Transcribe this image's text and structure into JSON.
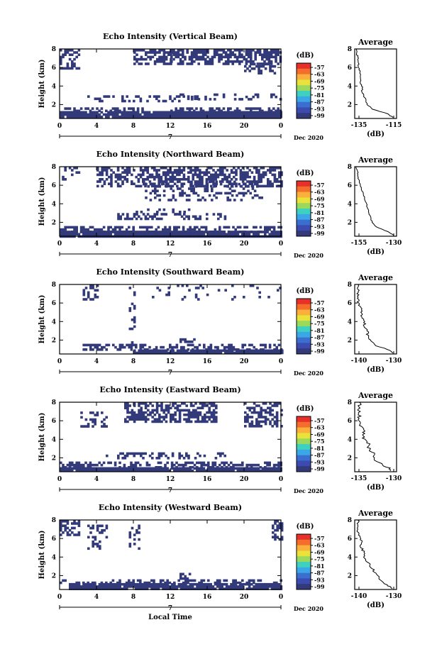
{
  "figure": {
    "xlabel": "Local Time",
    "date_label": "Dec 2020",
    "day_label": "7",
    "colorbar_unit": "(dB)",
    "colorbar_ticks": [
      "-57",
      "-63",
      "-69",
      "-75",
      "-81",
      "-87",
      "-93",
      "-99"
    ],
    "colorbar_colors": [
      "#e8302a",
      "#f46d2a",
      "#fbb03b",
      "#e8e23a",
      "#9bd95c",
      "#3fd1c0",
      "#3aa8e6",
      "#3a6fd0",
      "#3b4bb0",
      "#333a7a"
    ]
  },
  "chart_data": [
    {
      "type": "heatmap",
      "title": "Echo Intensity (Vertical Beam)",
      "xlabel": "",
      "ylabel": "Height (km)",
      "x_ticks": [
        "0",
        "4",
        "8",
        "12",
        "16",
        "20",
        "0"
      ],
      "y_ticks": [
        "2",
        "4",
        "6",
        "8"
      ],
      "xlim": [
        0,
        24
      ],
      "ylim": [
        0.5,
        8
      ],
      "colorbar_label": "(dB)",
      "colorbar_range": [
        -99,
        -57
      ],
      "dominant_color": "#333a7a",
      "profile": {
        "title": "Average",
        "xlabel": "(dB)",
        "x_ticks": [
          "-135",
          "-115"
        ],
        "y_ticks": [
          "2",
          "4",
          "6",
          "8"
        ],
        "xlim": [
          -137,
          -114
        ],
        "ylim": [
          0.5,
          8
        ],
        "height": [
          0.6,
          1.0,
          1.5,
          2.0,
          2.5,
          3.0,
          3.5,
          4.0,
          4.5,
          5.0,
          5.5,
          6.0,
          6.5,
          7.0,
          7.5,
          8.0
        ],
        "value": [
          -116,
          -119,
          -127,
          -130,
          -131,
          -132,
          -133,
          -133,
          -134,
          -134,
          -134,
          -135,
          -135,
          -135,
          -136,
          -136
        ]
      }
    },
    {
      "type": "heatmap",
      "title": "Echo Intensity (Northward Beam)",
      "xlabel": "",
      "ylabel": "Height (km)",
      "x_ticks": [
        "0",
        "4",
        "8",
        "12",
        "16",
        "20",
        "0"
      ],
      "y_ticks": [
        "2",
        "4",
        "6",
        "8"
      ],
      "xlim": [
        0,
        24
      ],
      "ylim": [
        0.5,
        8
      ],
      "colorbar_label": "(dB)",
      "colorbar_range": [
        -99,
        -57
      ],
      "dominant_color": "#333a7a",
      "profile": {
        "title": "Average",
        "xlabel": "(dB)",
        "x_ticks": [
          "-155",
          "-130"
        ],
        "y_ticks": [
          "2",
          "4",
          "6",
          "8"
        ],
        "xlim": [
          -157,
          -128
        ],
        "ylim": [
          0.5,
          8
        ],
        "height": [
          0.6,
          1.0,
          1.5,
          2.0,
          2.5,
          3.0,
          3.5,
          4.0,
          4.5,
          5.0,
          5.5,
          6.0,
          6.5,
          7.0,
          7.5,
          8.0
        ],
        "value": [
          -130,
          -134,
          -142,
          -145,
          -146,
          -147,
          -148,
          -149,
          -150,
          -151,
          -152,
          -153,
          -154,
          -155,
          -155,
          -156
        ]
      }
    },
    {
      "type": "heatmap",
      "title": "Echo Intensity (Southward Beam)",
      "xlabel": "",
      "ylabel": "Height (km)",
      "x_ticks": [
        "0",
        "4",
        "8",
        "12",
        "16",
        "20",
        "0"
      ],
      "y_ticks": [
        "2",
        "4",
        "6",
        "8"
      ],
      "xlim": [
        0,
        24
      ],
      "ylim": [
        0.5,
        8
      ],
      "colorbar_label": "(dB)",
      "colorbar_range": [
        -99,
        -57
      ],
      "dominant_color": "#333a7a",
      "profile": {
        "title": "Average",
        "xlabel": "(dB)",
        "x_ticks": [
          "-140",
          "-130"
        ],
        "y_ticks": [
          "2",
          "4",
          "6",
          "8"
        ],
        "xlim": [
          -141,
          -128
        ],
        "ylim": [
          0.5,
          8
        ],
        "height": [
          0.6,
          1.0,
          1.5,
          2.0,
          2.5,
          3.0,
          3.5,
          4.0,
          4.5,
          5.0,
          5.5,
          6.0,
          6.5,
          7.0,
          7.5,
          8.0
        ],
        "value": [
          -129,
          -131,
          -135,
          -136,
          -137,
          -137,
          -138,
          -138,
          -139,
          -139,
          -139,
          -140,
          -140,
          -140,
          -140,
          -140
        ]
      }
    },
    {
      "type": "heatmap",
      "title": "Echo Intensity (Eastward Beam)",
      "xlabel": "",
      "ylabel": "Height (km)",
      "x_ticks": [
        "0",
        "4",
        "8",
        "12",
        "16",
        "20",
        "0"
      ],
      "y_ticks": [
        "2",
        "4",
        "6",
        "8"
      ],
      "xlim": [
        0,
        24
      ],
      "ylim": [
        0.5,
        8
      ],
      "colorbar_label": "(dB)",
      "colorbar_range": [
        -99,
        -57
      ],
      "dominant_color": "#333a7a",
      "profile": {
        "title": "Average",
        "xlabel": "(dB)",
        "x_ticks": [
          "-135",
          "-130"
        ],
        "y_ticks": [
          "2",
          "4",
          "6",
          "8"
        ],
        "xlim": [
          -137,
          -128
        ],
        "ylim": [
          0.5,
          8
        ],
        "height": [
          0.6,
          1.0,
          1.5,
          2.0,
          2.5,
          3.0,
          3.5,
          4.0,
          4.5,
          5.0,
          5.5,
          6.0,
          6.5,
          7.0,
          7.5,
          8.0
        ],
        "value": [
          -129,
          -130,
          -132,
          -133,
          -133,
          -134,
          -134,
          -135,
          -135,
          -135,
          -136,
          -136,
          -136,
          -136,
          -136,
          -136
        ]
      }
    },
    {
      "type": "heatmap",
      "title": "Echo Intensity (Westward Beam)",
      "xlabel": "Local Time",
      "ylabel": "Height (km)",
      "x_ticks": [
        "0",
        "4",
        "8",
        "12",
        "16",
        "20",
        "0"
      ],
      "y_ticks": [
        "2",
        "4",
        "6",
        "8"
      ],
      "xlim": [
        0,
        24
      ],
      "ylim": [
        0.5,
        8
      ],
      "colorbar_label": "(dB)",
      "colorbar_range": [
        -99,
        -57
      ],
      "dominant_color": "#333a7a",
      "profile": {
        "title": "Average",
        "xlabel": "(dB)",
        "x_ticks": [
          "-140",
          "-130"
        ],
        "y_ticks": [
          "2",
          "4",
          "6",
          "8"
        ],
        "xlim": [
          -141,
          -128
        ],
        "ylim": [
          0.5,
          8
        ],
        "height": [
          0.6,
          1.0,
          1.5,
          2.0,
          2.5,
          3.0,
          3.5,
          4.0,
          4.5,
          5.0,
          5.5,
          6.0,
          6.5,
          7.0,
          7.5,
          8.0
        ],
        "value": [
          -129,
          -131,
          -133,
          -134,
          -135,
          -136,
          -137,
          -138,
          -138,
          -139,
          -139,
          -139,
          -140,
          -140,
          -140,
          -140
        ]
      }
    }
  ]
}
